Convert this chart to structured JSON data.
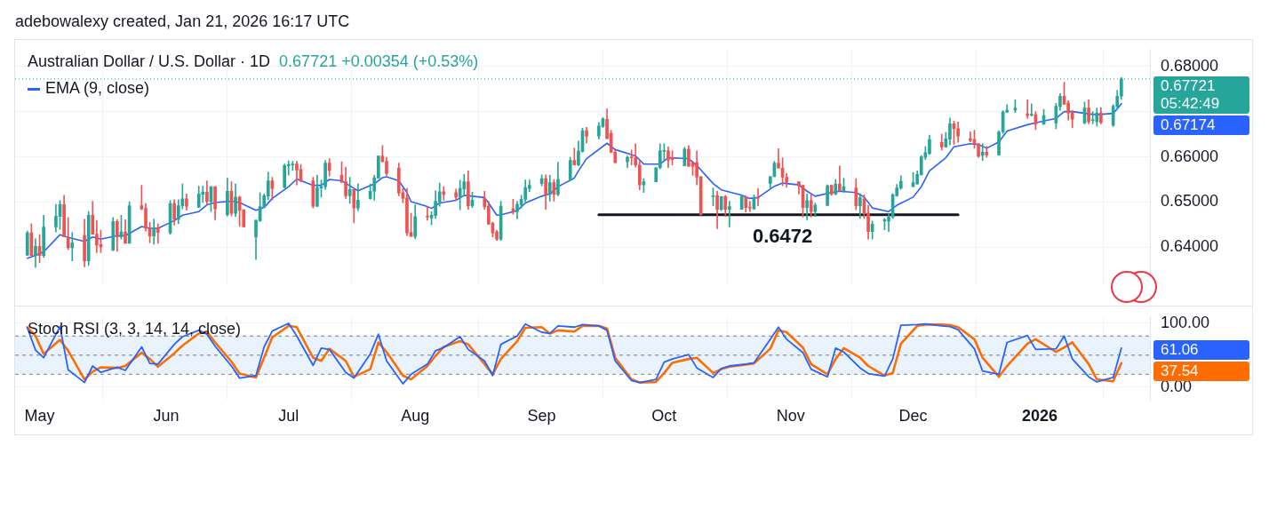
{
  "chart_data": [
    {
      "type": "candlestick",
      "title": "Australian Dollar / U.S. Dollar · 1D",
      "subtitle": "0.67721 +0.00354 (+0.53%)",
      "legend": "top left",
      "grid": true,
      "tick_labels": "y",
      "x": [
        "2025-04-28",
        "2025-04-29",
        "2025-04-30",
        "2025-05-01",
        "2025-05-02",
        "2025-05-05",
        "2025-05-06",
        "2025-05-07",
        "2025-05-08",
        "2025-05-09",
        "2025-05-12",
        "2025-05-13",
        "2025-05-14",
        "2025-05-15",
        "2025-05-16",
        "2025-05-19",
        "2025-05-20",
        "2025-05-21",
        "2025-05-22",
        "2025-05-23",
        "2025-05-26",
        "2025-05-27",
        "2025-05-28",
        "2025-05-29",
        "2025-05-30",
        "2025-06-02",
        "2025-06-03",
        "2025-06-04",
        "2025-06-05",
        "2025-06-06",
        "2025-06-09",
        "2025-06-10",
        "2025-06-11",
        "2025-06-12",
        "2025-06-13",
        "2025-06-16",
        "2025-06-17",
        "2025-06-18",
        "2025-06-19",
        "2025-06-20",
        "2025-06-23",
        "2025-06-24",
        "2025-06-25",
        "2025-06-26",
        "2025-06-27",
        "2025-06-30",
        "2025-07-01",
        "2025-07-02",
        "2025-07-03",
        "2025-07-04",
        "2025-07-07",
        "2025-07-08",
        "2025-07-09",
        "2025-07-10",
        "2025-07-11",
        "2025-07-14",
        "2025-07-15",
        "2025-07-16",
        "2025-07-17",
        "2025-07-18",
        "2025-07-21",
        "2025-07-22",
        "2025-07-23",
        "2025-07-24",
        "2025-07-25",
        "2025-07-28",
        "2025-07-29",
        "2025-07-30",
        "2025-07-31",
        "2025-08-01",
        "2025-08-04",
        "2025-08-05",
        "2025-08-06",
        "2025-08-07",
        "2025-08-08",
        "2025-08-11",
        "2025-08-12",
        "2025-08-13",
        "2025-08-14",
        "2025-08-15",
        "2025-08-18",
        "2025-08-19",
        "2025-08-20",
        "2025-08-21",
        "2025-08-22",
        "2025-08-25",
        "2025-08-26",
        "2025-08-27",
        "2025-08-28",
        "2025-08-29",
        "2025-09-01",
        "2025-09-02",
        "2025-09-03",
        "2025-09-04",
        "2025-09-05",
        "2025-09-08",
        "2025-09-09",
        "2025-09-10",
        "2025-09-11",
        "2025-09-12",
        "2025-09-15",
        "2025-09-16",
        "2025-09-17",
        "2025-09-18",
        "2025-09-19",
        "2025-09-22",
        "2025-09-23",
        "2025-09-24",
        "2025-09-25",
        "2025-09-26",
        "2025-09-29",
        "2025-09-30",
        "2025-10-01",
        "2025-10-02",
        "2025-10-03",
        "2025-10-06",
        "2025-10-07",
        "2025-10-08",
        "2025-10-09",
        "2025-10-10",
        "2025-10-13",
        "2025-10-14",
        "2025-10-15",
        "2025-10-16",
        "2025-10-17",
        "2025-10-20",
        "2025-10-21",
        "2025-10-22",
        "2025-10-23",
        "2025-10-24",
        "2025-10-27",
        "2025-10-28",
        "2025-10-29",
        "2025-10-30",
        "2025-10-31",
        "2025-11-03",
        "2025-11-04",
        "2025-11-05",
        "2025-11-06",
        "2025-11-07",
        "2025-11-10",
        "2025-11-11",
        "2025-11-12",
        "2025-11-13",
        "2025-11-14",
        "2025-11-17",
        "2025-11-18",
        "2025-11-19",
        "2025-11-20",
        "2025-11-21",
        "2025-11-24",
        "2025-11-25",
        "2025-11-26",
        "2025-11-27",
        "2025-11-28",
        "2025-12-01",
        "2025-12-02",
        "2025-12-03",
        "2025-12-04",
        "2025-12-05",
        "2025-12-08",
        "2025-12-09",
        "2025-12-10",
        "2025-12-11",
        "2025-12-12",
        "2025-12-15",
        "2025-12-16",
        "2025-12-17",
        "2025-12-18",
        "2025-12-19",
        "2025-12-22",
        "2025-12-23",
        "2025-12-24",
        "2025-12-26",
        "2025-12-29",
        "2025-12-30",
        "2025-12-31",
        "2026-01-02",
        "2026-01-05",
        "2026-01-06",
        "2026-01-07",
        "2026-01-08",
        "2026-01-09",
        "2026-01-12",
        "2026-01-13",
        "2026-01-14",
        "2026-01-15",
        "2026-01-16",
        "2026-01-19",
        "2026-01-20",
        "2026-01-21"
      ],
      "ohlc": [
        [
          0.6383,
          0.6436,
          0.6382,
          0.6432
        ],
        [
          0.6432,
          0.6452,
          0.6382,
          0.6382
        ],
        [
          0.6382,
          0.6419,
          0.6356,
          0.6402
        ],
        [
          0.6402,
          0.6428,
          0.6366,
          0.6382
        ],
        [
          0.6382,
          0.6471,
          0.6378,
          0.6445
        ],
        [
          0.6445,
          0.6495,
          0.6434,
          0.6469
        ],
        [
          0.6468,
          0.6503,
          0.644,
          0.6495
        ],
        [
          0.6495,
          0.6515,
          0.6423,
          0.6423
        ],
        [
          0.6423,
          0.6466,
          0.6395,
          0.6399
        ],
        [
          0.6399,
          0.6433,
          0.637,
          0.641
        ],
        [
          0.6426,
          0.6462,
          0.6357,
          0.637
        ],
        [
          0.637,
          0.6479,
          0.636,
          0.6471
        ],
        [
          0.6471,
          0.6502,
          0.6429,
          0.6429
        ],
        [
          0.6429,
          0.6459,
          0.6388,
          0.6405
        ],
        [
          0.6406,
          0.6438,
          0.6388,
          0.6401
        ],
        [
          0.6393,
          0.6466,
          0.6393,
          0.6457
        ],
        [
          0.6457,
          0.6461,
          0.6391,
          0.6423
        ],
        [
          0.6423,
          0.6471,
          0.6418,
          0.6434
        ],
        [
          0.6434,
          0.6461,
          0.6409,
          0.6409
        ],
        [
          0.6409,
          0.6501,
          0.6409,
          0.6492
        ],
        [
          0.6492,
          0.6537,
          0.6483,
          0.6485
        ],
        [
          0.6486,
          0.6497,
          0.6436,
          0.6442
        ],
        [
          0.6442,
          0.6455,
          0.641,
          0.6425
        ],
        [
          0.6425,
          0.6462,
          0.6407,
          0.6443
        ],
        [
          0.6443,
          0.6452,
          0.6409,
          0.6433
        ],
        [
          0.6432,
          0.6503,
          0.6429,
          0.6497
        ],
        [
          0.6497,
          0.6505,
          0.6449,
          0.6462
        ],
        [
          0.6462,
          0.6505,
          0.6452,
          0.6492
        ],
        [
          0.6492,
          0.654,
          0.6485,
          0.6507
        ],
        [
          0.6507,
          0.6518,
          0.6482,
          0.6491
        ],
        [
          0.6489,
          0.6535,
          0.6488,
          0.6518
        ],
        [
          0.6517,
          0.6535,
          0.6499,
          0.6522
        ],
        [
          0.6522,
          0.6547,
          0.6494,
          0.6501
        ],
        [
          0.6501,
          0.6534,
          0.6479,
          0.6534
        ],
        [
          0.6534,
          0.6534,
          0.6461,
          0.6485
        ],
        [
          0.6472,
          0.6553,
          0.6469,
          0.6524
        ],
        [
          0.6524,
          0.6545,
          0.6469,
          0.6475
        ],
        [
          0.6475,
          0.654,
          0.6468,
          0.6511
        ],
        [
          0.6511,
          0.6513,
          0.6446,
          0.6482
        ],
        [
          0.6483,
          0.6483,
          0.6445,
          0.6445
        ],
        [
          0.6423,
          0.646,
          0.6373,
          0.646
        ],
        [
          0.6459,
          0.6521,
          0.6457,
          0.649
        ],
        [
          0.6488,
          0.6518,
          0.6488,
          0.6514
        ],
        [
          0.6513,
          0.6566,
          0.6505,
          0.6547
        ],
        [
          0.6547,
          0.6555,
          0.6505,
          0.653
        ],
        [
          0.6532,
          0.6584,
          0.6532,
          0.6581
        ],
        [
          0.658,
          0.6591,
          0.656,
          0.6583
        ],
        [
          0.6582,
          0.659,
          0.657,
          0.6584
        ],
        [
          0.6584,
          0.659,
          0.6538,
          0.6571
        ],
        [
          0.6572,
          0.6583,
          0.6545,
          0.6547
        ],
        [
          0.6547,
          0.6555,
          0.6487,
          0.6491
        ],
        [
          0.6491,
          0.6559,
          0.649,
          0.6532
        ],
        [
          0.6531,
          0.6549,
          0.6511,
          0.6534
        ],
        [
          0.6534,
          0.6592,
          0.6528,
          0.6586
        ],
        [
          0.6586,
          0.6596,
          0.6557,
          0.657
        ],
        [
          0.6559,
          0.6589,
          0.6544,
          0.6544
        ],
        [
          0.6545,
          0.6577,
          0.6508,
          0.6514
        ],
        [
          0.6514,
          0.6555,
          0.6497,
          0.6528
        ],
        [
          0.6528,
          0.6528,
          0.6454,
          0.6487
        ],
        [
          0.6487,
          0.654,
          0.6481,
          0.6504
        ],
        [
          0.6508,
          0.654,
          0.6506,
          0.6524
        ],
        [
          0.6524,
          0.6559,
          0.6504,
          0.6554
        ],
        [
          0.6553,
          0.6602,
          0.6552,
          0.6602
        ],
        [
          0.6602,
          0.6625,
          0.6588,
          0.659
        ],
        [
          0.659,
          0.6599,
          0.6559,
          0.6563
        ],
        [
          0.6575,
          0.6586,
          0.6514,
          0.652
        ],
        [
          0.6521,
          0.653,
          0.6498,
          0.6508
        ],
        [
          0.6509,
          0.653,
          0.6426,
          0.6432
        ],
        [
          0.6433,
          0.6476,
          0.6424,
          0.6424
        ],
        [
          0.6424,
          0.6494,
          0.6419,
          0.6468
        ],
        [
          0.6469,
          0.649,
          0.646,
          0.6467
        ],
        [
          0.6465,
          0.6479,
          0.645,
          0.6471
        ],
        [
          0.647,
          0.6525,
          0.6464,
          0.6502
        ],
        [
          0.6501,
          0.6542,
          0.6491,
          0.6523
        ],
        [
          0.6523,
          0.6534,
          0.6504,
          0.6517
        ],
        [
          0.6521,
          0.6529,
          0.6504,
          0.6511
        ],
        [
          0.6511,
          0.6548,
          0.6483,
          0.653
        ],
        [
          0.6529,
          0.6561,
          0.6514,
          0.6545
        ],
        [
          0.6545,
          0.6569,
          0.6484,
          0.6492
        ],
        [
          0.6492,
          0.6522,
          0.6488,
          0.6504
        ],
        [
          0.6508,
          0.6524,
          0.6484,
          0.649
        ],
        [
          0.6491,
          0.6502,
          0.6451,
          0.6451
        ],
        [
          0.6453,
          0.6456,
          0.6423,
          0.6432
        ],
        [
          0.6434,
          0.6438,
          0.6415,
          0.6418
        ],
        [
          0.6418,
          0.6502,
          0.6415,
          0.6491
        ],
        [
          0.6485,
          0.6506,
          0.6473,
          0.6479
        ],
        [
          0.6479,
          0.6502,
          0.6463,
          0.6495
        ],
        [
          0.6494,
          0.6515,
          0.6487,
          0.6506
        ],
        [
          0.6506,
          0.6549,
          0.6501,
          0.6532
        ],
        [
          0.653,
          0.6549,
          0.6523,
          0.6537
        ],
        [
          0.6541,
          0.656,
          0.6536,
          0.6552
        ],
        [
          0.6552,
          0.656,
          0.6484,
          0.6517
        ],
        [
          0.6517,
          0.6559,
          0.6502,
          0.6543
        ],
        [
          0.6543,
          0.655,
          0.6502,
          0.6517
        ],
        [
          0.6517,
          0.6588,
          0.6514,
          0.655
        ],
        [
          0.6549,
          0.6599,
          0.6547,
          0.6592
        ],
        [
          0.6592,
          0.6619,
          0.6582,
          0.6582
        ],
        [
          0.6582,
          0.6635,
          0.658,
          0.6613
        ],
        [
          0.6612,
          0.6663,
          0.661,
          0.6658
        ],
        [
          0.6658,
          0.6665,
          0.663,
          0.6646
        ],
        [
          0.6646,
          0.6676,
          0.6639,
          0.6668
        ],
        [
          0.6667,
          0.6687,
          0.6665,
          0.6684
        ],
        [
          0.6683,
          0.6706,
          0.664,
          0.664
        ],
        [
          0.6652,
          0.6659,
          0.6609,
          0.661
        ],
        [
          0.661,
          0.6615,
          0.6587,
          0.6587
        ],
        [
          0.6589,
          0.6602,
          0.6576,
          0.6599
        ],
        [
          0.6599,
          0.6615,
          0.6582,
          0.6598
        ],
        [
          0.6598,
          0.6629,
          0.6577,
          0.6582
        ],
        [
          0.6582,
          0.659,
          0.6527,
          0.6538
        ],
        [
          0.6538,
          0.6552,
          0.6521,
          0.6545
        ],
        [
          0.6545,
          0.6576,
          0.6545,
          0.6576
        ],
        [
          0.6576,
          0.6629,
          0.6573,
          0.6613
        ],
        [
          0.6612,
          0.6629,
          0.6593,
          0.6613
        ],
        [
          0.6613,
          0.6622,
          0.6576,
          0.6593
        ],
        [
          0.6599,
          0.6613,
          0.6582,
          0.6594
        ],
        [
          0.658,
          0.6621,
          0.658,
          0.6617
        ],
        [
          0.6617,
          0.6625,
          0.6579,
          0.6579
        ],
        [
          0.6587,
          0.6587,
          0.6559,
          0.6579
        ],
        [
          0.6587,
          0.6613,
          0.6538,
          0.6555
        ],
        [
          0.6556,
          0.6556,
          0.6471,
          0.6472
        ],
        [
          0.6512,
          0.6531,
          0.6492,
          0.6514
        ],
        [
          0.6514,
          0.6524,
          0.6441,
          0.6484
        ],
        [
          0.6484,
          0.6512,
          0.6481,
          0.6512
        ],
        [
          0.6512,
          0.6515,
          0.6468,
          0.6484
        ],
        [
          0.6484,
          0.6502,
          0.6445,
          0.649
        ],
        [
          0.6484,
          0.6514,
          0.6484,
          0.6512
        ],
        [
          0.6512,
          0.6513,
          0.6478,
          0.6488
        ],
        [
          0.6489,
          0.6502,
          0.6479,
          0.6487
        ],
        [
          0.6485,
          0.6516,
          0.6484,
          0.651
        ],
        [
          0.6511,
          0.653,
          0.6492,
          0.6509
        ],
        [
          0.6541,
          0.6556,
          0.653,
          0.6556
        ],
        [
          0.6556,
          0.659,
          0.6556,
          0.6586
        ],
        [
          0.6586,
          0.6618,
          0.6575,
          0.6575
        ],
        [
          0.6575,
          0.6598,
          0.6536,
          0.6555
        ],
        [
          0.6555,
          0.6563,
          0.6533,
          0.6544
        ],
        [
          0.6545,
          0.6545,
          0.6518,
          0.6536
        ],
        [
          0.6537,
          0.6537,
          0.6467,
          0.6488
        ],
        [
          0.6488,
          0.6518,
          0.6461,
          0.6503
        ],
        [
          0.6503,
          0.6519,
          0.6467,
          0.6479
        ],
        [
          0.6479,
          0.6498,
          0.6468,
          0.6493
        ],
        [
          0.6493,
          0.6538,
          0.6492,
          0.6536
        ],
        [
          0.6537,
          0.6538,
          0.6515,
          0.6518
        ],
        [
          0.6518,
          0.655,
          0.6516,
          0.654
        ],
        [
          0.654,
          0.658,
          0.6524,
          0.6525
        ],
        [
          0.6525,
          0.6553,
          0.6521,
          0.6534
        ],
        [
          0.6531,
          0.6552,
          0.6483,
          0.6492
        ],
        [
          0.6492,
          0.6519,
          0.6464,
          0.651
        ],
        [
          0.6507,
          0.6516,
          0.6464,
          0.6474
        ],
        [
          0.6476,
          0.6493,
          0.6418,
          0.6435
        ],
        [
          0.6435,
          0.6458,
          0.6418,
          0.6451
        ],
        [
          0.6458,
          0.6464,
          0.6439,
          0.6461
        ],
        [
          0.6458,
          0.6474,
          0.6435,
          0.6467
        ],
        [
          0.6467,
          0.6519,
          0.6464,
          0.6516
        ],
        [
          0.6514,
          0.6539,
          0.6513,
          0.6531
        ],
        [
          0.6531,
          0.6558,
          0.6528,
          0.6546
        ],
        [
          0.6534,
          0.6565,
          0.6534,
          0.6543
        ],
        [
          0.654,
          0.6569,
          0.654,
          0.6561
        ],
        [
          0.656,
          0.6603,
          0.656,
          0.66
        ],
        [
          0.6599,
          0.6623,
          0.6594,
          0.6609
        ],
        [
          0.6607,
          0.6648,
          0.6605,
          0.6638
        ],
        [
          0.6632,
          0.665,
          0.6615,
          0.6622
        ],
        [
          0.6622,
          0.6654,
          0.6621,
          0.664
        ],
        [
          0.6639,
          0.6686,
          0.6626,
          0.6673
        ],
        [
          0.6673,
          0.6679,
          0.6627,
          0.6662
        ],
        [
          0.6662,
          0.6677,
          0.6632,
          0.6646
        ],
        [
          0.664,
          0.6655,
          0.6633,
          0.6636
        ],
        [
          0.6638,
          0.6659,
          0.6619,
          0.6629
        ],
        [
          0.6629,
          0.6629,
          0.6599,
          0.6601
        ],
        [
          0.6603,
          0.6629,
          0.6592,
          0.661
        ],
        [
          0.661,
          0.6623,
          0.6599,
          0.6604
        ],
        [
          0.6604,
          0.6658,
          0.6603,
          0.6655
        ],
        [
          0.6655,
          0.6702,
          0.6652,
          0.6699
        ],
        [
          0.6699,
          0.6715,
          0.6698,
          0.6703
        ],
        [
          0.6703,
          0.6726,
          0.6698,
          0.6708
        ],
        [
          0.6695,
          0.6726,
          0.6685,
          0.6691
        ],
        [
          0.6692,
          0.6717,
          0.669,
          0.6693
        ],
        [
          0.6693,
          0.67,
          0.666,
          0.6672
        ],
        [
          0.6672,
          0.6705,
          0.6672,
          0.6691
        ],
        [
          0.6675,
          0.6718,
          0.6662,
          0.6712
        ],
        [
          0.6711,
          0.674,
          0.6703,
          0.6734
        ],
        [
          0.6734,
          0.6765,
          0.6716,
          0.6716
        ],
        [
          0.6719,
          0.6724,
          0.6681,
          0.6697
        ],
        [
          0.6697,
          0.6703,
          0.6664,
          0.6683
        ],
        [
          0.6675,
          0.6721,
          0.6673,
          0.6708
        ],
        [
          0.6708,
          0.6726,
          0.6673,
          0.6678
        ],
        [
          0.668,
          0.67,
          0.6673,
          0.6681
        ],
        [
          0.6678,
          0.6708,
          0.6668,
          0.6697
        ],
        [
          0.6697,
          0.6709,
          0.6673,
          0.6676
        ],
        [
          0.667,
          0.6715,
          0.6667,
          0.6712
        ],
        [
          0.6711,
          0.6747,
          0.6707,
          0.6734
        ],
        [
          0.6734,
          0.6775,
          0.6727,
          0.67721
        ]
      ],
      "xlim": [
        "2025-04-25",
        "2026-01-28"
      ],
      "xticks": [
        {
          "value": "2025-05-01",
          "label": null
        },
        {
          "value": "2025-06-01",
          "label": null
        },
        {
          "value": "2025-07-01",
          "label": null
        },
        {
          "value": "2025-08-01",
          "label": null
        },
        {
          "value": "2025-09-01",
          "label": null
        },
        {
          "value": "2025-10-01",
          "label": null
        },
        {
          "value": "2025-11-01",
          "label": null
        },
        {
          "value": "2025-12-01",
          "label": null
        },
        {
          "value": "2026-01-01",
          "label": null
        }
      ],
      "ylim": [
        0.6318,
        0.6837
      ],
      "yticks": [
        {
          "value": 0.64,
          "label": "0.64000"
        },
        {
          "value": 0.65,
          "label": "0.65000"
        },
        {
          "value": 0.66,
          "label": "0.66000"
        },
        {
          "value": 0.67,
          "label": null
        },
        {
          "value": 0.68,
          "label": "0.68000"
        }
      ],
      "series": [
        {
          "type": "line",
          "name": "EMA (9, close)",
          "color": "#2962ff",
          "x": [
            "2025-04-28",
            "2025-04-30",
            "2025-05-02",
            "2025-05-06",
            "2025-05-08",
            "2025-05-12",
            "2025-05-14",
            "2025-05-16",
            "2025-05-20",
            "2025-05-22",
            "2025-05-26",
            "2025-05-28",
            "2025-05-30",
            "2025-06-03",
            "2025-06-05",
            "2025-06-09",
            "2025-06-11",
            "2025-06-13",
            "2025-06-17",
            "2025-06-19",
            "2025-06-23",
            "2025-06-25",
            "2025-06-27",
            "2025-07-01",
            "2025-07-03",
            "2025-07-07",
            "2025-07-09",
            "2025-07-11",
            "2025-07-14",
            "2025-07-16",
            "2025-07-18",
            "2025-07-22",
            "2025-07-24",
            "2025-07-25",
            "2025-07-28",
            "2025-07-30",
            "2025-07-31",
            "2025-08-04",
            "2025-08-05",
            "2025-08-07",
            "2025-08-11",
            "2025-08-13",
            "2025-08-14",
            "2025-08-18",
            "2025-08-19",
            "2025-08-21",
            "2025-08-22",
            "2025-08-26",
            "2025-08-28",
            "2025-09-01",
            "2025-09-03",
            "2025-09-05",
            "2025-09-09",
            "2025-09-10",
            "2025-09-12",
            "2025-09-17",
            "2025-09-19",
            "2025-09-24",
            "2025-09-26",
            "2025-09-30",
            "2025-10-02",
            "2025-10-07",
            "2025-10-09",
            "2025-10-13",
            "2025-10-15",
            "2025-10-20",
            "2025-10-22",
            "2025-10-24",
            "2025-10-28",
            "2025-10-30",
            "2025-11-03",
            "2025-11-05",
            "2025-11-07",
            "2025-11-11",
            "2025-11-13",
            "2025-11-17",
            "2025-11-19",
            "2025-11-21",
            "2025-11-25",
            "2025-11-27",
            "2025-12-01",
            "2025-12-03",
            "2025-12-05",
            "2025-12-09",
            "2025-12-11",
            "2025-12-15",
            "2025-12-17",
            "2025-12-19",
            "2025-12-22",
            "2025-12-24",
            "2025-12-29",
            "2025-12-31",
            "2026-01-05",
            "2026-01-07",
            "2026-01-09",
            "2026-01-13",
            "2026-01-15",
            "2026-01-19",
            "2026-01-20",
            "2026-01-21"
          ],
          "values": [
            0.6376,
            0.6382,
            0.639,
            0.6428,
            0.6422,
            0.6413,
            0.6423,
            0.6418,
            0.6426,
            0.6426,
            0.6446,
            0.6442,
            0.6442,
            0.6459,
            0.6471,
            0.6479,
            0.6494,
            0.6499,
            0.6502,
            0.6499,
            0.6482,
            0.6488,
            0.6508,
            0.6534,
            0.6551,
            0.6537,
            0.6537,
            0.655,
            0.6547,
            0.6536,
            0.6525,
            0.654,
            0.6554,
            0.6556,
            0.6547,
            0.6521,
            0.6501,
            0.649,
            0.6486,
            0.6498,
            0.6504,
            0.6515,
            0.6514,
            0.651,
            0.6498,
            0.6471,
            0.6472,
            0.6481,
            0.6498,
            0.6513,
            0.6518,
            0.6534,
            0.6553,
            0.6569,
            0.6596,
            0.663,
            0.6616,
            0.6602,
            0.6584,
            0.6584,
            0.6598,
            0.6596,
            0.6581,
            0.6541,
            0.6527,
            0.6515,
            0.6508,
            0.651,
            0.6535,
            0.6542,
            0.6538,
            0.6524,
            0.6513,
            0.6521,
            0.6524,
            0.6521,
            0.6511,
            0.6487,
            0.6479,
            0.6493,
            0.6511,
            0.6534,
            0.6569,
            0.6598,
            0.6622,
            0.6629,
            0.6627,
            0.6619,
            0.6633,
            0.6657,
            0.6671,
            0.6675,
            0.6685,
            0.67,
            0.67,
            0.6695,
            0.6693,
            0.6696,
            0.6706,
            0.67174
          ]
        },
        {
          "type": "line",
          "color": "#131722",
          "x": [
            "2025-09-15",
            "2025-12-12"
          ],
          "values": [
            0.6472,
            0.6472
          ]
        }
      ],
      "ref_lines": [
        {
          "axis": "y",
          "value": 0.67721,
          "label": "0.67721",
          "color": "#26a69a",
          "line_style": "dotted"
        }
      ],
      "annotations": [
        "adebowalexy created, Jan 21, 2026 16:17 UTC",
        "05:42:49",
        {
          "text": "0.67174",
          "x": "2026-01-21",
          "y": 0.67174
        },
        {
          "text": "0.6472",
          "x": "2025-10-30",
          "y": 0.6472
        }
      ]
    },
    {
      "type": "line",
      "title": "Stoch RSI (3, 3, 14, 14, close)",
      "grid": true,
      "x": [
        "2025-04-28",
        "2025-04-30",
        "2025-05-02",
        "2025-05-06",
        "2025-05-08",
        "2025-05-12",
        "2025-05-14",
        "2025-05-16",
        "2025-05-20",
        "2025-05-22",
        "2025-05-26",
        "2025-05-28",
        "2025-05-30",
        "2025-06-03",
        "2025-06-05",
        "2025-06-09",
        "2025-06-11",
        "2025-06-13",
        "2025-06-17",
        "2025-06-19",
        "2025-06-23",
        "2025-06-25",
        "2025-06-27",
        "2025-07-01",
        "2025-07-03",
        "2025-07-07",
        "2025-07-09",
        "2025-07-11",
        "2025-07-15",
        "2025-07-17",
        "2025-07-21",
        "2025-07-23",
        "2025-07-25",
        "2025-07-29",
        "2025-07-31",
        "2025-08-04",
        "2025-08-06",
        "2025-08-08",
        "2025-08-12",
        "2025-08-14",
        "2025-08-18",
        "2025-08-20",
        "2025-08-22",
        "2025-08-26",
        "2025-08-28",
        "2025-09-01",
        "2025-09-03",
        "2025-09-05",
        "2025-09-09",
        "2025-09-11",
        "2025-09-15",
        "2025-09-17",
        "2025-09-19",
        "2025-09-23",
        "2025-09-25",
        "2025-09-29",
        "2025-10-01",
        "2025-10-03",
        "2025-10-07",
        "2025-10-09",
        "2025-10-13",
        "2025-10-15",
        "2025-10-17",
        "2025-10-21",
        "2025-10-23",
        "2025-10-27",
        "2025-10-29",
        "2025-10-31",
        "2025-11-04",
        "2025-11-06",
        "2025-11-10",
        "2025-11-12",
        "2025-11-14",
        "2025-11-18",
        "2025-11-20",
        "2025-11-24",
        "2025-11-26",
        "2025-11-28",
        "2025-12-02",
        "2025-12-04",
        "2025-12-08",
        "2025-12-10",
        "2025-12-12",
        "2025-12-16",
        "2025-12-18",
        "2025-12-22",
        "2025-12-24",
        "2025-12-29",
        "2025-12-31",
        "2026-01-05",
        "2026-01-07",
        "2026-01-09",
        "2026-01-13",
        "2026-01-15",
        "2026-01-19",
        "2026-01-21"
      ],
      "xlim": [
        "2025-04-25",
        "2026-01-28"
      ],
      "xticks": [
        {
          "value": "2025-05-01",
          "label": "May"
        },
        {
          "value": "2025-06-01",
          "label": "Jun"
        },
        {
          "value": "2025-07-01",
          "label": "Jul"
        },
        {
          "value": "2025-08-01",
          "label": "Aug"
        },
        {
          "value": "2025-09-01",
          "label": "Sep"
        },
        {
          "value": "2025-10-01",
          "label": "Oct"
        },
        {
          "value": "2025-11-01",
          "label": "Nov"
        },
        {
          "value": "2025-12-01",
          "label": "Dec"
        },
        {
          "value": "2026-01-01",
          "label": "2026"
        }
      ],
      "ylim": [
        -20,
        110
      ],
      "yticks": [
        {
          "value": 0,
          "label": "0.00"
        },
        {
          "value": 100,
          "label": "100.00"
        }
      ],
      "series": [
        {
          "color": "#2962ff",
          "values": [
            93,
            58,
            46,
            95,
            27,
            7,
            33,
            23,
            31,
            26,
            63,
            37,
            36,
            67,
            79,
            89,
            83,
            64,
            33,
            14,
            18,
            63,
            88,
            100,
            80,
            34,
            61,
            59,
            23,
            14,
            52,
            83,
            41,
            5,
            20,
            36,
            57,
            62,
            79,
            59,
            41,
            18,
            67,
            80,
            99,
            86,
            84,
            96,
            94,
            98,
            96,
            89,
            41,
            10,
            7,
            12,
            39,
            44,
            51,
            30,
            15,
            29,
            33,
            36,
            38,
            75,
            94,
            75,
            54,
            28,
            16,
            61,
            55,
            30,
            21,
            17,
            44,
            97,
            98,
            99,
            96,
            95,
            90,
            60,
            25,
            20,
            70,
            81,
            59,
            60,
            80,
            44,
            16,
            8,
            15,
            61.06
          ]
        },
        {
          "color": "#ff6d00",
          "values": [
            94,
            80,
            52,
            74,
            57,
            12,
            24,
            31,
            30,
            33,
            54,
            44,
            32,
            53,
            65,
            84,
            87,
            70,
            40,
            21,
            15,
            46,
            78,
            96,
            94,
            46,
            41,
            60,
            41,
            16,
            28,
            70,
            55,
            18,
            12,
            33,
            49,
            63,
            72,
            67,
            36,
            20,
            44,
            72,
            93,
            94,
            84,
            89,
            87,
            96,
            96,
            92,
            46,
            12,
            7,
            8,
            22,
            38,
            44,
            46,
            22,
            28,
            32,
            35,
            37,
            60,
            89,
            86,
            62,
            36,
            20,
            44,
            61,
            46,
            33,
            18,
            22,
            68,
            96,
            98,
            98,
            97,
            94,
            75,
            46,
            16,
            33,
            68,
            75,
            55,
            62,
            70,
            36,
            12,
            9,
            37.54
          ]
        }
      ],
      "bands": [
        {
          "axis": "y",
          "from": 20,
          "to": 80,
          "color": "#e9f3fe"
        }
      ],
      "ref_lines": [
        {
          "axis": "y",
          "value": 80,
          "color": "#787b86",
          "line_style": "dashed"
        },
        {
          "axis": "y",
          "value": 50,
          "color": "#787b86",
          "line_style": "dashed"
        },
        {
          "axis": "y",
          "value": 20,
          "color": "#787b86",
          "line_style": "dashed"
        }
      ],
      "annotations": [
        {
          "text": "61.06",
          "x": "2026-01-21",
          "y": 61.06
        },
        {
          "text": "37.54",
          "x": "2026-01-21",
          "y": 37.54
        }
      ]
    }
  ]
}
